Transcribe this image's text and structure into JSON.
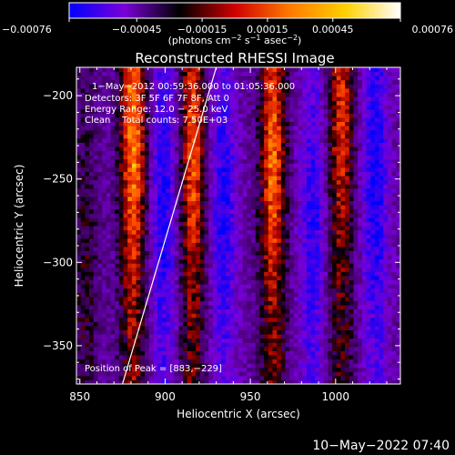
{
  "chart_data": {
    "type": "heatmap",
    "title": "Reconstructed RHESSI Image",
    "xlabel": "Heliocentric X (arcsec)",
    "ylabel": "Heliocentric Y (arcsec)",
    "x_range": [
      848,
      1038
    ],
    "y_range": [
      -373,
      -183
    ],
    "x_ticks": [
      850,
      900,
      950,
      1000
    ],
    "x_tick_labels": [
      "850",
      "900",
      "950",
      "1000"
    ],
    "y_ticks": [
      -200,
      -250,
      -300,
      -350
    ],
    "y_tick_labels": [
      "−200",
      "−250",
      "−300",
      "−350"
    ],
    "colorbar": {
      "range": [
        -0.00076,
        0.00076
      ],
      "ticks": [
        -0.00076,
        -0.00045,
        -0.00015,
        0.00015,
        0.00045,
        0.00076
      ],
      "tick_labels": [
        "−0.00076",
        "−0.00045",
        "−0.00015",
        "0.00015",
        "0.00045",
        "0.00076"
      ],
      "unit_main": "(photons cm",
      "unit_exp1": "−2",
      "unit_mid": " s",
      "unit_exp2": "−1",
      "unit_mid2": " asec",
      "unit_exp3": "−2",
      "unit_end": ")",
      "colors": [
        "#0000ff",
        "#7a00d8",
        "#000000",
        "#d00000",
        "#ff7a00",
        "#ffd000",
        "#ffffff"
      ]
    },
    "annotations": [
      "1−May−2012 00:59:36.000 to 01:05:36.000",
      "Detectors: 3F 5F 6F 7F 8F, Att 0",
      "Energy Range: 12.0 − 25.0 keV",
      "Clean    Total counts: 7.50E+03"
    ],
    "peak_label": "Position of Peak = [883,−229]",
    "peak": [
      883,
      -229
    ],
    "limb_line": [
      [
        875,
        -373
      ],
      [
        930,
        -183
      ]
    ],
    "stripes": [
      {
        "x": 880,
        "amp": 1.0,
        "yc": -225
      },
      {
        "x": 898,
        "amp": -0.55,
        "yc": -270
      },
      {
        "x": 915,
        "amp": 0.85,
        "yc": -235
      },
      {
        "x": 933,
        "amp": -0.55,
        "yc": -270
      },
      {
        "x": 962,
        "amp": 0.9,
        "yc": -240
      },
      {
        "x": 985,
        "amp": -0.5,
        "yc": -280
      },
      {
        "x": 1002,
        "amp": 0.75,
        "yc": -215
      },
      {
        "x": 1022,
        "amp": -0.6,
        "yc": -250
      },
      {
        "x": 852,
        "amp": 0.35,
        "yc": -320
      }
    ]
  },
  "timestamp": "10−May−2022 07:40"
}
